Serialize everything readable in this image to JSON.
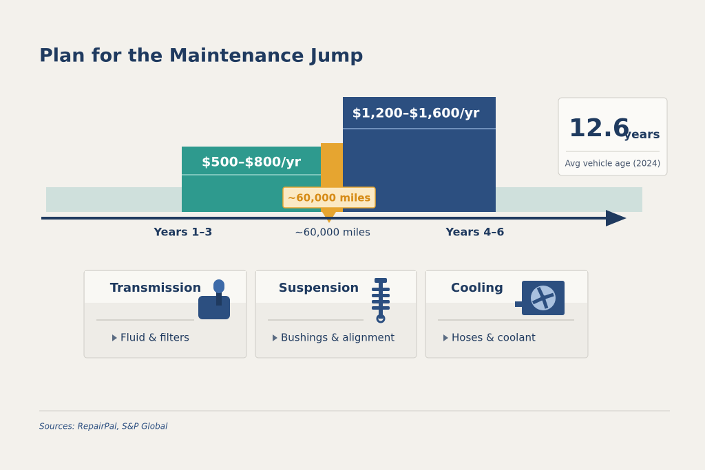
{
  "header": {
    "title": "Plan for the Maintenance Jump"
  },
  "timeline": {
    "early": {
      "cost": "$500–$800/yr",
      "label": "Years 1–3"
    },
    "milestone": {
      "callout": "~60,000 miles",
      "label": "~60,000 miles"
    },
    "late": {
      "cost": "$1,200–$1,600/yr",
      "label": "Years 4–6"
    }
  },
  "stat": {
    "value": "12.6",
    "unit": "years",
    "caption": "Avg vehicle age (2024)"
  },
  "cards": [
    {
      "title": "Transmission",
      "item": "Fluid & filters"
    },
    {
      "title": "Suspension",
      "item": "Bushings & alignment"
    },
    {
      "title": "Cooling",
      "item": "Hoses & coolant"
    }
  ],
  "footer": {
    "sources": "Sources: RepairPal, S&P Global"
  }
}
